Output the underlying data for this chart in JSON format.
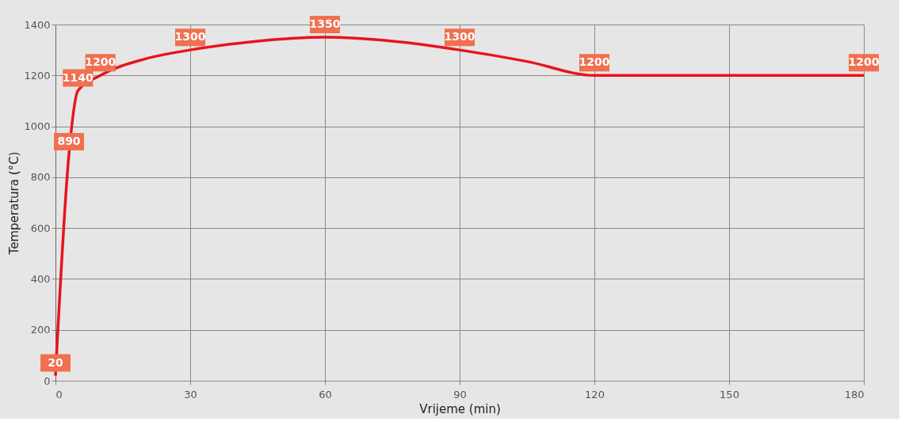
{
  "chart_data": {
    "type": "line",
    "xlabel": "Vrijeme (min)",
    "ylabel": "Temperatura (°C)",
    "x": [
      0,
      3,
      5,
      10,
      20,
      30,
      45,
      60,
      75,
      90,
      105,
      120,
      180
    ],
    "series": [
      {
        "color": "#e8141c",
        "values": [
          20,
          890,
          1140,
          1200,
          1265,
          1300,
          1335,
          1350,
          1335,
          1300,
          1255,
          1200,
          1200
        ],
        "value_labels": [
          "20",
          "890",
          "1140",
          "1200",
          null,
          "1300",
          null,
          "1350",
          null,
          "1300",
          null,
          "1200",
          "1200"
        ]
      }
    ],
    "xlim": [
      0,
      180
    ],
    "xticks": [
      0,
      30,
      60,
      90,
      120,
      150,
      180
    ],
    "ylim": [
      0,
      1400
    ],
    "yticks": [
      0,
      200,
      400,
      600,
      800,
      1000,
      1200,
      1400
    ],
    "grid": true,
    "marker": "none",
    "line_style": "solid"
  }
}
